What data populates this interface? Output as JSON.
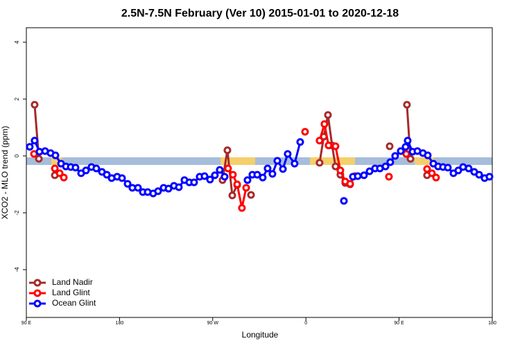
{
  "chart_data": {
    "type": "line",
    "title": "2.5N-7.5N February (Ver 10)   2015-01-01 to 2020-12-18",
    "x_label": "Longitude",
    "y_label": "XCO2 - MLO trend (ppm)",
    "xlim": [
      90,
      540
    ],
    "ylim": [
      -5.68,
      4.51
    ],
    "xticks": [
      {
        "value": 90,
        "label": "90 E"
      },
      180,
      {
        "value": 270,
        "label": "90 W"
      },
      {
        "value": 360,
        "label": "0"
      },
      {
        "value": 450,
        "label": "90 E"
      },
      {
        "value": 540,
        "label": "180"
      }
    ],
    "yticks": [
      -4,
      -2,
      0,
      2,
      4
    ],
    "legend": "bottom-left",
    "series": [
      {
        "name": "Land Nadir",
        "color": "#a52a2a",
        "x": [
          98.0,
          102.1,
          null,
          117.5,
          null,
          279.5,
          284.2,
          288.9,
          293.6,
          null,
          307.0,
          null,
          373.2,
          377.3,
          381.3,
          385.3,
          388.6,
          393.3,
          398.0,
          402.7,
          null,
          440.9,
          null,
          457.6,
          461.0,
          null,
          477.0
        ],
        "values": [
          1.8,
          -0.1,
          null,
          -0.68,
          null,
          -0.85,
          0.2,
          -1.39,
          -1.02,
          null,
          -1.37,
          null,
          -0.24,
          0.68,
          1.44,
          0.37,
          -0.37,
          -0.66,
          -0.95,
          -1.0,
          null,
          0.34,
          null,
          1.8,
          -0.1,
          null,
          -0.68
        ]
      },
      {
        "name": "Land Glint",
        "color": "#ff0000",
        "x": [
          97.4,
          null,
          117.5,
          122.2,
          126.2,
          null,
          284.8,
          289.5,
          293.6,
          298.2,
          302.3,
          null,
          359.2,
          null,
          373.2,
          377.9,
          381.9,
          388.6,
          393.3,
          398.0,
          402.7,
          407.4,
          null,
          440.2,
          null,
          456.9,
          null,
          477.0,
          481.7,
          485.7
        ],
        "values": [
          0.07,
          null,
          -0.44,
          -0.61,
          -0.76,
          null,
          -0.44,
          -0.66,
          -1.0,
          -1.83,
          -1.12,
          null,
          0.85,
          null,
          0.54,
          1.12,
          0.37,
          0.34,
          -0.51,
          -0.9,
          -0.98,
          -0.71,
          null,
          -0.73,
          null,
          0.07,
          null,
          -0.46,
          -0.61,
          -0.76
        ]
      },
      {
        "name": "Ocean Glint",
        "color": "#0000ff",
        "x": [
          93.3,
          98.0,
          102.7,
          108.1,
          113.4,
          118.1,
          123.5,
          128.2,
          132.9,
          137.5,
          142.9,
          147.6,
          152.9,
          157.6,
          163.0,
          167.7,
          172.4,
          177.7,
          182.4,
          187.8,
          192.4,
          197.8,
          202.5,
          207.2,
          212.5,
          217.2,
          222.6,
          227.3,
          232.6,
          237.3,
          242.7,
          247.4,
          252.0,
          257.4,
          262.1,
          267.4,
          272.1,
          276.8,
          281.5,
          null,
          303.6,
          308.3,
          313.0,
          318.3,
          323.0,
          327.7,
          332.4,
          337.8,
          342.4,
          349.1,
          354.5,
          null,
          396.7,
          null,
          405.4,
          410.1,
          416.1,
          421.5,
          426.8,
          431.5,
          436.9,
          441.5,
          446.2,
          451.6,
          456.3,
          458.3,
          463.0,
          467.7,
          473.0,
          477.7,
          483.1,
          487.7,
          492.4,
          497.1,
          502.5,
          507.2,
          511.8,
          517.2,
          522.6,
          527.3,
          532.6,
          537.3
        ],
        "values": [
          0.32,
          0.54,
          0.15,
          0.17,
          0.1,
          0.02,
          -0.27,
          -0.37,
          -0.39,
          -0.41,
          -0.61,
          -0.51,
          -0.39,
          -0.44,
          -0.56,
          -0.66,
          -0.78,
          -0.73,
          -0.78,
          -0.98,
          -1.12,
          -1.12,
          -1.27,
          -1.27,
          -1.32,
          -1.24,
          -1.12,
          -1.15,
          -1.05,
          -1.1,
          -0.85,
          -0.93,
          -0.93,
          -0.73,
          -0.71,
          -0.83,
          -0.68,
          -0.49,
          -0.73,
          null,
          -0.85,
          -0.66,
          -0.66,
          -0.76,
          -0.44,
          -0.63,
          -0.17,
          -0.46,
          0.07,
          -0.27,
          0.49,
          null,
          -1.58,
          null,
          -0.73,
          -0.71,
          -0.68,
          -0.54,
          -0.44,
          -0.44,
          -0.37,
          -0.22,
          0.0,
          0.17,
          0.32,
          0.54,
          0.15,
          0.17,
          0.1,
          0.02,
          -0.27,
          -0.37,
          -0.39,
          -0.41,
          -0.61,
          -0.51,
          -0.39,
          -0.44,
          -0.56,
          -0.66,
          -0.78,
          -0.73
        ]
      }
    ]
  }
}
